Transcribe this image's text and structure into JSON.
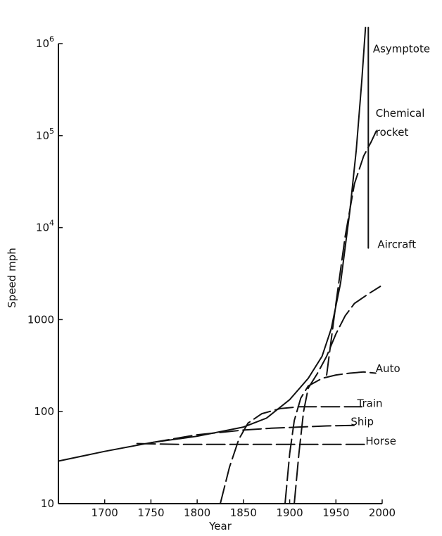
{
  "chart_data": {
    "type": "line",
    "title": "",
    "xlabel": "Year",
    "ylabel": "Speed mph",
    "xlim": [
      1650,
      2000
    ],
    "ylim": [
      10,
      1000000
    ],
    "yscale": "log",
    "grid": false,
    "legend": "none (series labelled at line ends)",
    "xticks": [
      {
        "value": 1700,
        "label": "1700"
      },
      {
        "value": 1750,
        "label": "1750"
      },
      {
        "value": 1800,
        "label": "1800"
      },
      {
        "value": 1850,
        "label": "1850"
      },
      {
        "value": 1900,
        "label": "1900"
      },
      {
        "value": 1950,
        "label": "1950"
      },
      {
        "value": 2000,
        "label": "2000"
      }
    ],
    "yticks": [
      {
        "value": 10,
        "base": "10",
        "exp": ""
      },
      {
        "value": 100,
        "base": "100",
        "exp": ""
      },
      {
        "value": 1000,
        "base": "1000",
        "exp": ""
      },
      {
        "value": 10000,
        "base": "10",
        "exp": "4"
      },
      {
        "value": 100000,
        "base": "10",
        "exp": "5"
      },
      {
        "value": 1000000,
        "base": "10",
        "exp": "6"
      }
    ],
    "series": [
      {
        "name": "Asymptote",
        "style": "solid",
        "x": [
          1650,
          1700,
          1750,
          1800,
          1850,
          1875,
          1900,
          1920,
          1935,
          1945,
          1955,
          1965,
          1972,
          1978,
          1982
        ],
        "y": [
          29,
          37,
          46,
          54,
          68,
          85,
          135,
          230,
          400,
          800,
          2500,
          15000,
          70000,
          400000,
          1500000
        ]
      },
      {
        "name": "Asymptote",
        "style": "solid",
        "x": [
          1985,
          1985
        ],
        "y": [
          1500000,
          6000
        ]
      },
      {
        "name": "Chemical rocket",
        "style": "long-dash",
        "x": [
          1940,
          1950,
          1960,
          1970,
          1980,
          1988,
          1995
        ],
        "y": [
          250,
          1500,
          8000,
          30000,
          60000,
          85000,
          120000
        ]
      },
      {
        "name": "Aircraft",
        "style": "long-dash",
        "x": [
          1905,
          1910,
          1915,
          1920,
          1930,
          1940,
          1950,
          1960,
          1970,
          1985,
          1998
        ],
        "y": [
          10,
          35,
          100,
          180,
          260,
          400,
          700,
          1100,
          1500,
          1900,
          2300
        ]
      },
      {
        "name": "Auto",
        "style": "long-dash",
        "x": [
          1895,
          1900,
          1905,
          1912,
          1920,
          1935,
          1950,
          1965,
          1980,
          1993
        ],
        "y": [
          10,
          35,
          80,
          140,
          190,
          230,
          250,
          262,
          270,
          262
        ]
      },
      {
        "name": "Train",
        "style": "long-dash",
        "x": [
          1825,
          1835,
          1845,
          1855,
          1870,
          1890,
          1910,
          1950,
          1978
        ],
        "y": [
          10,
          25,
          50,
          75,
          95,
          108,
          113,
          113,
          113
        ]
      },
      {
        "name": "Ship",
        "style": "long-dash",
        "x": [
          1750,
          1800,
          1850,
          1880,
          1910,
          1940,
          1970
        ],
        "y": [
          46,
          56,
          63,
          66,
          68,
          70,
          71
        ]
      },
      {
        "name": "Horse",
        "style": "long-dash",
        "x": [
          1735,
          1780,
          1850,
          1900,
          1950,
          1985
        ],
        "y": [
          45,
          44,
          44,
          44,
          44,
          44
        ]
      }
    ],
    "annotations": [
      {
        "text": "Asymptote",
        "x": 1990,
        "y": 800000
      },
      {
        "text": "Chemical",
        "x": 1993,
        "y": 160000
      },
      {
        "text": "rocket",
        "x": 1993,
        "y": 100000
      },
      {
        "text": "Aircraft",
        "x": 1995,
        "y": 6000
      },
      {
        "text": "Auto",
        "x": 1993,
        "y": 270
      },
      {
        "text": "Train",
        "x": 1973,
        "y": 113
      },
      {
        "text": "Ship",
        "x": 1966,
        "y": 71
      },
      {
        "text": "Horse",
        "x": 1982,
        "y": 44
      }
    ]
  }
}
